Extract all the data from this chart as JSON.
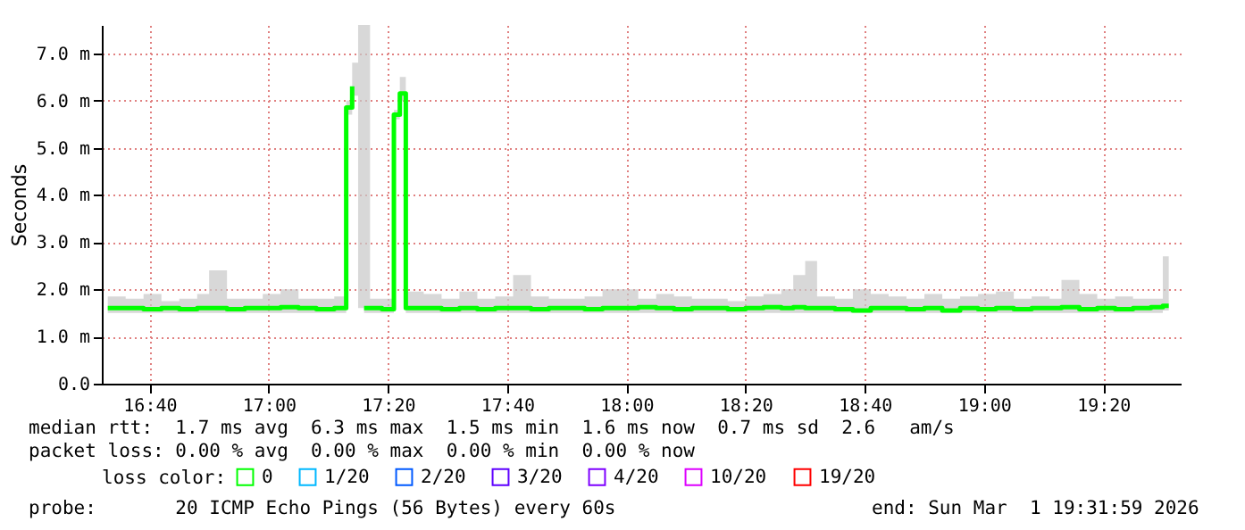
{
  "chart_data": {
    "type": "step",
    "ylabel": "Seconds",
    "x": [
      "2026-03-01T16:33",
      "2026-03-01T16:36",
      "2026-03-01T16:39",
      "2026-03-01T16:42",
      "2026-03-01T16:45",
      "2026-03-01T16:48",
      "2026-03-01T16:50",
      "2026-03-01T16:53",
      "2026-03-01T16:56",
      "2026-03-01T16:59",
      "2026-03-01T17:02",
      "2026-03-01T17:05",
      "2026-03-01T17:08",
      "2026-03-01T17:11",
      "2026-03-01T17:13",
      "2026-03-01T17:14",
      "2026-03-01T17:15",
      "2026-03-01T17:16",
      "2026-03-01T17:17",
      "2026-03-01T17:19",
      "2026-03-01T17:21",
      "2026-03-01T17:22",
      "2026-03-01T17:23",
      "2026-03-01T17:26",
      "2026-03-01T17:29",
      "2026-03-01T17:32",
      "2026-03-01T17:35",
      "2026-03-01T17:38",
      "2026-03-01T17:41",
      "2026-03-01T17:44",
      "2026-03-01T17:47",
      "2026-03-01T17:50",
      "2026-03-01T17:53",
      "2026-03-01T17:56",
      "2026-03-01T17:59",
      "2026-03-01T18:02",
      "2026-03-01T18:05",
      "2026-03-01T18:08",
      "2026-03-01T18:11",
      "2026-03-01T18:14",
      "2026-03-01T18:17",
      "2026-03-01T18:20",
      "2026-03-01T18:23",
      "2026-03-01T18:26",
      "2026-03-01T18:28",
      "2026-03-01T18:30",
      "2026-03-01T18:32",
      "2026-03-01T18:35",
      "2026-03-01T18:38",
      "2026-03-01T18:41",
      "2026-03-01T18:44",
      "2026-03-01T18:47",
      "2026-03-01T18:50",
      "2026-03-01T18:53",
      "2026-03-01T18:56",
      "2026-03-01T18:59",
      "2026-03-01T19:02",
      "2026-03-01T19:05",
      "2026-03-01T19:08",
      "2026-03-01T19:11",
      "2026-03-01T19:13",
      "2026-03-01T19:16",
      "2026-03-01T19:19",
      "2026-03-01T19:22",
      "2026-03-01T19:25",
      "2026-03-01T19:28",
      "2026-03-01T19:30",
      "2026-03-01T19:31"
    ],
    "series": [
      {
        "name": "0",
        "color": "#00ff00",
        "values": [
          1.6,
          1.6,
          1.58,
          1.6,
          1.58,
          1.6,
          1.6,
          1.58,
          1.6,
          1.6,
          1.62,
          1.6,
          1.58,
          1.6,
          5.85,
          6.3,
          null,
          1.6,
          1.6,
          1.58,
          5.7,
          6.15,
          1.6,
          1.6,
          1.58,
          1.6,
          1.58,
          1.6,
          1.6,
          1.58,
          1.6,
          1.6,
          1.58,
          1.6,
          1.6,
          1.62,
          1.6,
          1.58,
          1.6,
          1.6,
          1.58,
          1.6,
          1.62,
          1.6,
          1.62,
          1.6,
          1.6,
          1.58,
          1.55,
          1.6,
          1.6,
          1.58,
          1.6,
          1.55,
          1.6,
          1.58,
          1.6,
          1.58,
          1.6,
          1.6,
          1.62,
          1.58,
          1.6,
          1.58,
          1.6,
          1.62,
          1.65,
          1.65
        ],
        "lower": [
          1.5,
          1.5,
          1.5,
          1.5,
          1.5,
          1.5,
          1.5,
          1.5,
          1.5,
          1.5,
          1.5,
          1.5,
          1.5,
          1.5,
          5.7,
          6.1,
          1.6,
          1.5,
          1.5,
          1.5,
          5.6,
          6.0,
          1.5,
          1.5,
          1.5,
          1.5,
          1.5,
          1.5,
          1.5,
          1.5,
          1.5,
          1.5,
          1.5,
          1.5,
          1.5,
          1.5,
          1.5,
          1.5,
          1.5,
          1.5,
          1.5,
          1.5,
          1.5,
          1.5,
          1.5,
          1.5,
          1.5,
          1.5,
          1.5,
          1.5,
          1.5,
          1.5,
          1.5,
          1.5,
          1.5,
          1.5,
          1.5,
          1.5,
          1.5,
          1.5,
          1.5,
          1.5,
          1.5,
          1.5,
          1.5,
          1.5,
          1.55,
          1.55
        ],
        "upper": [
          1.85,
          1.8,
          1.9,
          1.75,
          1.8,
          1.9,
          2.4,
          1.8,
          1.8,
          1.9,
          2.0,
          1.8,
          1.8,
          1.85,
          6.0,
          6.8,
          7.6,
          7.6,
          1.8,
          1.8,
          5.8,
          6.5,
          1.95,
          1.9,
          1.8,
          1.95,
          1.8,
          1.85,
          2.3,
          1.85,
          1.8,
          1.8,
          1.85,
          2.0,
          2.0,
          1.8,
          1.9,
          1.85,
          1.8,
          1.8,
          1.75,
          1.85,
          1.9,
          2.0,
          2.3,
          2.6,
          1.85,
          1.8,
          2.0,
          1.9,
          1.85,
          1.8,
          1.9,
          1.8,
          1.85,
          1.9,
          1.95,
          1.8,
          1.85,
          1.8,
          2.2,
          1.9,
          1.8,
          1.85,
          1.8,
          1.8,
          2.7,
          2.7
        ]
      },
      {
        "name": "1/20",
        "color": "#00b8ff",
        "values": [
          null,
          null,
          null,
          null,
          null,
          null,
          null,
          null,
          null,
          null,
          null,
          null,
          null,
          null,
          null,
          null,
          null,
          null,
          null,
          null,
          null,
          null,
          null,
          null,
          null,
          null,
          null,
          null,
          null,
          null,
          null,
          null,
          null,
          null,
          null,
          null,
          null,
          null,
          null,
          null,
          null,
          null,
          null,
          null,
          null,
          null,
          null,
          null,
          null,
          null,
          null,
          null,
          null,
          null,
          null,
          null,
          null,
          null,
          null,
          null,
          null,
          null,
          null,
          null,
          null,
          null,
          null,
          null
        ]
      },
      {
        "name": "2/20",
        "color": "#0059ff",
        "values": [
          null,
          null,
          null,
          null,
          null,
          null,
          null,
          null,
          null,
          null,
          null,
          null,
          null,
          null,
          null,
          null,
          null,
          null,
          null,
          null,
          null,
          null,
          null,
          null,
          null,
          null,
          null,
          null,
          null,
          null,
          null,
          null,
          null,
          null,
          null,
          null,
          null,
          null,
          null,
          null,
          null,
          null,
          null,
          null,
          null,
          null,
          null,
          null,
          null,
          null,
          null,
          null,
          null,
          null,
          null,
          null,
          null,
          null,
          null,
          null,
          null,
          null,
          null,
          null,
          null,
          null,
          null,
          null
        ]
      },
      {
        "name": "3/20",
        "color": "#5e00ff",
        "values": [
          null,
          null,
          null,
          null,
          null,
          null,
          null,
          null,
          null,
          null,
          null,
          null,
          null,
          null,
          null,
          null,
          null,
          null,
          null,
          null,
          null,
          null,
          null,
          null,
          null,
          null,
          null,
          null,
          null,
          null,
          null,
          null,
          null,
          null,
          null,
          null,
          null,
          null,
          null,
          null,
          null,
          null,
          null,
          null,
          null,
          null,
          null,
          null,
          null,
          null,
          null,
          null,
          null,
          null,
          null,
          null,
          null,
          null,
          null,
          null,
          null,
          null,
          null,
          null,
          null,
          null,
          null,
          null
        ]
      },
      {
        "name": "4/20",
        "color": "#7e00ff",
        "values": [
          null,
          null,
          null,
          null,
          null,
          null,
          null,
          null,
          null,
          null,
          null,
          null,
          null,
          null,
          null,
          null,
          null,
          null,
          null,
          null,
          null,
          null,
          null,
          null,
          null,
          null,
          null,
          null,
          null,
          null,
          null,
          null,
          null,
          null,
          null,
          null,
          null,
          null,
          null,
          null,
          null,
          null,
          null,
          null,
          null,
          null,
          null,
          null,
          null,
          null,
          null,
          null,
          null,
          null,
          null,
          null,
          null,
          null,
          null,
          null,
          null,
          null,
          null,
          null,
          null,
          null,
          null,
          null
        ]
      },
      {
        "name": "10/20",
        "color": "#dd00ff",
        "values": [
          null,
          null,
          null,
          null,
          null,
          null,
          null,
          null,
          null,
          null,
          null,
          null,
          null,
          null,
          null,
          null,
          null,
          null,
          null,
          null,
          null,
          null,
          null,
          null,
          null,
          null,
          null,
          null,
          null,
          null,
          null,
          null,
          null,
          null,
          null,
          null,
          null,
          null,
          null,
          null,
          null,
          null,
          null,
          null,
          null,
          null,
          null,
          null,
          null,
          null,
          null,
          null,
          null,
          null,
          null,
          null,
          null,
          null,
          null,
          null,
          null,
          null,
          null,
          null,
          null,
          null,
          null,
          null
        ]
      },
      {
        "name": "19/20",
        "color": "#ff0000",
        "values": [
          null,
          null,
          null,
          null,
          null,
          null,
          null,
          null,
          null,
          null,
          null,
          null,
          null,
          null,
          null,
          null,
          null,
          null,
          null,
          null,
          null,
          null,
          null,
          null,
          null,
          null,
          null,
          null,
          null,
          null,
          null,
          null,
          null,
          null,
          null,
          null,
          null,
          null,
          null,
          null,
          null,
          null,
          null,
          null,
          null,
          null,
          null,
          null,
          null,
          null,
          null,
          null,
          null,
          null,
          null,
          null,
          null,
          null,
          null,
          null,
          null,
          null,
          null,
          null,
          null,
          null,
          null,
          null
        ]
      }
    ],
    "legend": "bottom",
    "legend_title": "loss color:",
    "xlim": [
      "2026-03-01T16:32",
      "2026-03-01T19:33"
    ],
    "xticks": [
      {
        "value": "2026-03-01T16:40",
        "label": "16:40"
      },
      {
        "value": "2026-03-01T17:00",
        "label": "17:00"
      },
      {
        "value": "2026-03-01T17:20",
        "label": "17:20"
      },
      {
        "value": "2026-03-01T17:40",
        "label": "17:40"
      },
      {
        "value": "2026-03-01T18:00",
        "label": "18:00"
      },
      {
        "value": "2026-03-01T18:20",
        "label": "18:20"
      },
      {
        "value": "2026-03-01T18:40",
        "label": "18:40"
      },
      {
        "value": "2026-03-01T19:00",
        "label": "19:00"
      },
      {
        "value": "2026-03-01T19:20",
        "label": "19:20"
      }
    ],
    "ylim": [
      0,
      7.6
    ],
    "yticks": [
      {
        "value": 0,
        "label": "0.0"
      },
      {
        "value": 1,
        "label": "1.0 m"
      },
      {
        "value": 2,
        "label": "2.0 m"
      },
      {
        "value": 3,
        "label": "3.0 m"
      },
      {
        "value": 4,
        "label": "4.0 m"
      },
      {
        "value": 5,
        "label": "5.0 m"
      },
      {
        "value": 6,
        "label": "6.0 m"
      },
      {
        "value": 7,
        "label": "7.0 m"
      }
    ],
    "grid": true,
    "annotations": [
      "median rtt:  1.7 ms avg  6.3 ms max  1.5 ms min  1.6 ms now  0.7 ms sd  2.6   am/s",
      "packet loss: 0.00 % avg  0.00 % max  0.00 % min  0.00 % now",
      "probe:       20 ICMP Echo Pings (56 Bytes) every 60s",
      "end: Sun Mar  1 19:31:59 2026"
    ]
  }
}
